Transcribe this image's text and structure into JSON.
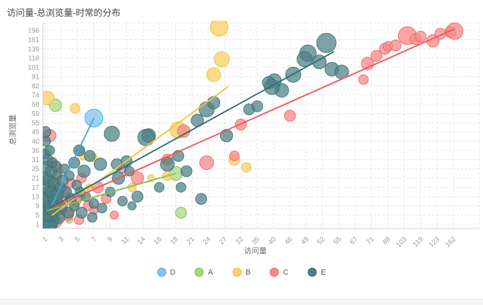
{
  "title": "访问量-总浏览量-时常的分布",
  "chart_data": {
    "type": "scatter",
    "title": "访问量-总浏览量-时常的分布",
    "xlabel": "访问量",
    "ylabel": "总浏览量",
    "grid": true,
    "legend_position": "bottom",
    "x_ticks": [
      1,
      3,
      5,
      7,
      9,
      11,
      14,
      16,
      18,
      21,
      24,
      27,
      32,
      35,
      40,
      46,
      49,
      52,
      55,
      67,
      71,
      88,
      103,
      119,
      123,
      162
    ],
    "y_ticks": [
      1,
      5,
      9,
      13,
      17,
      21,
      25,
      31,
      36,
      40,
      45,
      55,
      59,
      68,
      74,
      82,
      91,
      101,
      118,
      139,
      161,
      196
    ],
    "series": [
      {
        "name": "D",
        "fill": "#7cc5f1",
        "stroke": "#4ba3d9",
        "line": "#49a6e5",
        "opacity": 0.75,
        "trend": [
          [
            1.9,
            9.5
          ],
          [
            7,
            57
          ]
        ],
        "points": [
          [
            7,
            57,
            13
          ],
          [
            5.3,
            36,
            6
          ],
          [
            2.5,
            15,
            6
          ],
          [
            1.6,
            10,
            5
          ],
          [
            1.2,
            5,
            4
          ]
        ]
      },
      {
        "name": "A",
        "fill": "#a3d67d",
        "stroke": "#7cbb52",
        "line": "#7fc35e",
        "opacity": 0.7,
        "trend": [
          [
            1.35,
            7
          ],
          [
            18,
            23
          ]
        ],
        "points": [
          [
            2.3,
            67,
            9
          ],
          [
            1.3,
            36,
            6
          ],
          [
            18,
            23,
            10
          ],
          [
            1.15,
            21,
            7
          ],
          [
            1.6,
            25,
            6
          ],
          [
            2.0,
            13,
            6
          ],
          [
            1.05,
            9,
            8
          ],
          [
            2.8,
            17,
            5
          ],
          [
            1.5,
            5,
            7
          ],
          [
            3.2,
            9,
            5
          ],
          [
            19,
            6,
            8
          ],
          [
            5.5,
            13,
            5
          ],
          [
            1.1,
            2,
            9
          ],
          [
            2.2,
            2.5,
            6
          ],
          [
            4,
            3,
            5
          ],
          [
            1,
            42,
            5
          ]
        ]
      },
      {
        "name": "B",
        "fill": "#f8d26a",
        "stroke": "#eebc3c",
        "line": "#f0c63f",
        "opacity": 0.8,
        "trend": [
          [
            1.9,
            5
          ],
          [
            28,
            81
          ]
        ],
        "points": [
          [
            1.3,
            72,
            10
          ],
          [
            26,
            208,
            13
          ],
          [
            26.5,
            116,
            11
          ],
          [
            25,
            93,
            10
          ],
          [
            4.7,
            64,
            7
          ],
          [
            18.5,
            47,
            12
          ],
          [
            5.7,
            33,
            6
          ],
          [
            6.9,
            32,
            6
          ],
          [
            17,
            22,
            7
          ],
          [
            30,
            31,
            8
          ],
          [
            33,
            26,
            7
          ],
          [
            2.0,
            30,
            6
          ],
          [
            1.5,
            17,
            7
          ],
          [
            2.6,
            21,
            5
          ],
          [
            1.2,
            13,
            8
          ],
          [
            3.4,
            13,
            6
          ],
          [
            2.1,
            9,
            7
          ],
          [
            1.1,
            6,
            6
          ],
          [
            4.5,
            8,
            5
          ],
          [
            6.5,
            17,
            5
          ],
          [
            1.8,
            3,
            7
          ],
          [
            3.0,
            4,
            5
          ],
          [
            15,
            21,
            5
          ],
          [
            12,
            17,
            6
          ]
        ]
      },
      {
        "name": "C",
        "fill": "#f98888",
        "stroke": "#f25f5f",
        "line": "#f4555a",
        "opacity": 0.75,
        "trend": [
          [
            1.8,
            8
          ],
          [
            163,
            200
          ]
        ],
        "points": [
          [
            70,
            108,
            9
          ],
          [
            76,
            123,
            8
          ],
          [
            85,
            139,
            8
          ],
          [
            88,
            145,
            7
          ],
          [
            95,
            147,
            8
          ],
          [
            106,
            176,
            13
          ],
          [
            114,
            163,
            8
          ],
          [
            119,
            172,
            8
          ],
          [
            122,
            158,
            9
          ],
          [
            131,
            183,
            8
          ],
          [
            155,
            190,
            8
          ],
          [
            165,
            193,
            12
          ],
          [
            69,
            88,
            7
          ],
          [
            46,
            58,
            8
          ],
          [
            32,
            53,
            8
          ],
          [
            30,
            33,
            7
          ],
          [
            19.5,
            46,
            9
          ],
          [
            23.7,
            29,
            10
          ],
          [
            17,
            31,
            8
          ],
          [
            13,
            21,
            9
          ],
          [
            1.6,
            43,
            9
          ],
          [
            2.6,
            25,
            7
          ],
          [
            2.2,
            17,
            8
          ],
          [
            3.3,
            15,
            9
          ],
          [
            4.2,
            19,
            7
          ],
          [
            5.5,
            21,
            7
          ],
          [
            7.5,
            17,
            8
          ],
          [
            2.9,
            9,
            8
          ],
          [
            4.8,
            11,
            7
          ],
          [
            6.3,
            9,
            7
          ],
          [
            1.9,
            6,
            7
          ],
          [
            3.8,
            5,
            8
          ],
          [
            8.5,
            12,
            7
          ],
          [
            10.5,
            25,
            6
          ],
          [
            2.4,
            2,
            8
          ],
          [
            5.2,
            3,
            7
          ],
          [
            1.3,
            12,
            6
          ],
          [
            1.15,
            3,
            7
          ],
          [
            7,
            7,
            6
          ],
          [
            9.5,
            5,
            6
          ]
        ]
      },
      {
        "name": "E",
        "fill": "#4b7f84",
        "stroke": "#386d72",
        "line": "#2e706f",
        "opacity": 0.72,
        "trend": [
          [
            1.6,
            8
          ],
          [
            54,
            132
          ]
        ],
        "points": [
          [
            52.7,
            153,
            14
          ],
          [
            49.3,
            129,
            12
          ],
          [
            51.4,
            111,
            10
          ],
          [
            48.7,
            116,
            11
          ],
          [
            46.6,
            93,
            11
          ],
          [
            43,
            78,
            10
          ],
          [
            40.3,
            87,
            10
          ],
          [
            38.5,
            85,
            9
          ],
          [
            39.5,
            81,
            11
          ],
          [
            53.7,
            99,
            10
          ],
          [
            57,
            96,
            10
          ],
          [
            35,
            66,
            8
          ],
          [
            33.5,
            63,
            8
          ],
          [
            23.7,
            63,
            11
          ],
          [
            22,
            56,
            9
          ],
          [
            25,
            69,
            9
          ],
          [
            27.6,
            43,
            9
          ],
          [
            14.7,
            43,
            10
          ],
          [
            17,
            28,
            10
          ],
          [
            18.5,
            33,
            8
          ],
          [
            14.4,
            42,
            12
          ],
          [
            9.2,
            44,
            11
          ],
          [
            20,
            24,
            8
          ],
          [
            22.7,
            12,
            8
          ],
          [
            16,
            17,
            7
          ],
          [
            13,
            13,
            8
          ],
          [
            11,
            30,
            8
          ],
          [
            10,
            21,
            9
          ],
          [
            7.8,
            28,
            9
          ],
          [
            6.5,
            33,
            8
          ],
          [
            5.8,
            24,
            9
          ],
          [
            5.2,
            36,
            8
          ],
          [
            4.6,
            29,
            8
          ],
          [
            19,
            17,
            7
          ],
          [
            1.05,
            2,
            18
          ],
          [
            1.2,
            4,
            16
          ],
          [
            1.5,
            3,
            15
          ],
          [
            1.1,
            7,
            15
          ],
          [
            1.35,
            9,
            14
          ],
          [
            1.7,
            6,
            13
          ],
          [
            1.05,
            13,
            13
          ],
          [
            1.6,
            12,
            12
          ],
          [
            2.0,
            8,
            12
          ],
          [
            1.25,
            17,
            11
          ],
          [
            1.9,
            15,
            10
          ],
          [
            2.3,
            11,
            10
          ],
          [
            1.05,
            21,
            10
          ],
          [
            2.6,
            14,
            9
          ],
          [
            1.5,
            20,
            9
          ],
          [
            2.1,
            19,
            8
          ],
          [
            2.9,
            17,
            8
          ],
          [
            1.1,
            26,
            9
          ],
          [
            1.8,
            24,
            8
          ],
          [
            2.5,
            22,
            7
          ],
          [
            3.2,
            20,
            8
          ],
          [
            3.6,
            15,
            8
          ],
          [
            4.2,
            12,
            8
          ],
          [
            3.0,
            8,
            9
          ],
          [
            3.9,
            6,
            8
          ],
          [
            2.7,
            4,
            9
          ],
          [
            4.6,
            9,
            7
          ],
          [
            5.3,
            15,
            7
          ],
          [
            4.9,
            18,
            7
          ],
          [
            1.3,
            31,
            8
          ],
          [
            1.9,
            29,
            7
          ],
          [
            2.4,
            27,
            7
          ],
          [
            1.05,
            34,
            7
          ],
          [
            1.6,
            36,
            7
          ],
          [
            1.1,
            40,
            7
          ],
          [
            1.05,
            45,
            8
          ],
          [
            3.4,
            25,
            7
          ],
          [
            4.0,
            22,
            7
          ],
          [
            6,
            13,
            7
          ],
          [
            7,
            10,
            7
          ],
          [
            8,
            8,
            7
          ],
          [
            5.5,
            6,
            8
          ],
          [
            6.8,
            4,
            7
          ],
          [
            9,
            15,
            7
          ],
          [
            10.5,
            11,
            7
          ],
          [
            12,
            9,
            6
          ],
          [
            9.8,
            28,
            8
          ],
          [
            11.5,
            24,
            7
          ]
        ]
      }
    ],
    "colors": {
      "grid": "#e4e4e4",
      "axis": "#cccccc",
      "tick_text": "#999999",
      "axis_name_text": "#666666"
    }
  }
}
